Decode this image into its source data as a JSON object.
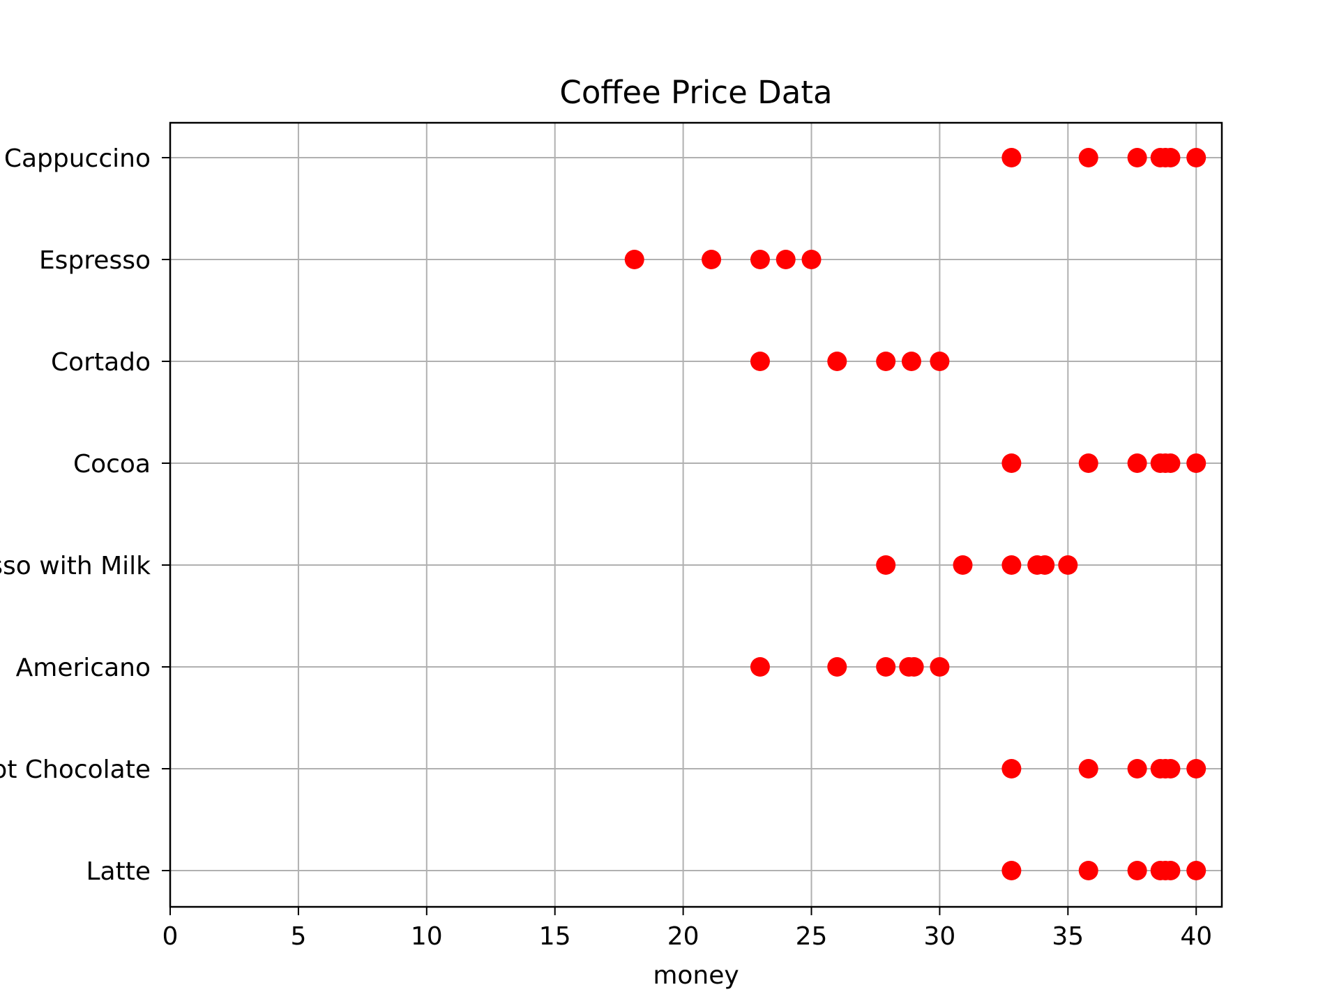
{
  "chart_data": {
    "type": "scatter",
    "title": "Coffee Price Data",
    "xlabel": "money",
    "ylabel": "",
    "xlim": [
      0,
      41
    ],
    "xticks": [
      0,
      5,
      10,
      15,
      20,
      25,
      30,
      35,
      40
    ],
    "categories": [
      "Cappuccino",
      "Espresso",
      "Cortado",
      "Cocoa",
      "Espresso with Milk",
      "Americano",
      "Hot Chocolate",
      "Latte"
    ],
    "points": [
      [
        32.8,
        35.8,
        37.7,
        38.6,
        38.8,
        39.0,
        40.0
      ],
      [
        18.1,
        21.1,
        23.0,
        24.0,
        25.0
      ],
      [
        23.0,
        26.0,
        27.9,
        28.9,
        30.0
      ],
      [
        32.8,
        35.8,
        37.7,
        38.6,
        38.8,
        39.0,
        40.0
      ],
      [
        27.9,
        30.9,
        32.8,
        33.8,
        34.1,
        35.0
      ],
      [
        23.0,
        26.0,
        27.9,
        28.8,
        29.0,
        30.0
      ],
      [
        32.8,
        35.8,
        37.7,
        38.6,
        38.8,
        39.0,
        40.0
      ],
      [
        32.8,
        35.8,
        37.7,
        38.6,
        38.8,
        39.0,
        40.0
      ]
    ],
    "marker_color": "#ff0000",
    "grid": true
  }
}
